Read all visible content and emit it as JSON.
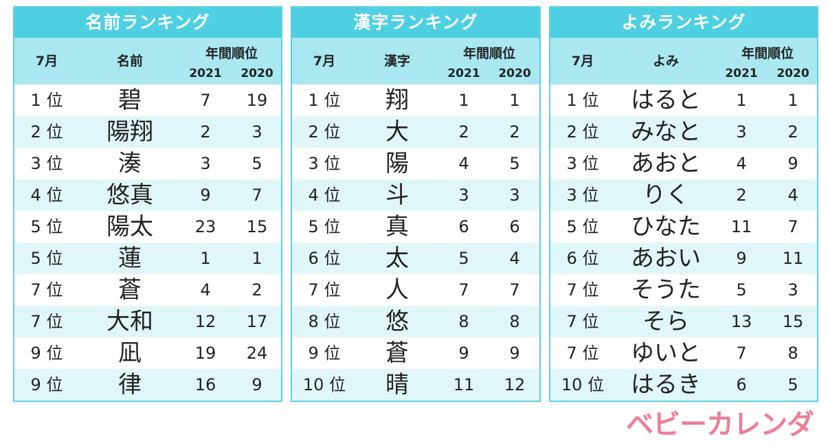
{
  "headers": {
    "month": "7月",
    "annual_rank": "年間順位",
    "year1": "2021",
    "year2": "2020"
  },
  "tables": [
    {
      "title": "名前ランキング",
      "name_header": "名前",
      "rows": [
        {
          "rank": "1 位",
          "name": "碧",
          "y2021": "7",
          "y2020": "19"
        },
        {
          "rank": "2 位",
          "name": "陽翔",
          "y2021": "2",
          "y2020": "3"
        },
        {
          "rank": "3 位",
          "name": "湊",
          "y2021": "3",
          "y2020": "5"
        },
        {
          "rank": "4 位",
          "name": "悠真",
          "y2021": "9",
          "y2020": "7"
        },
        {
          "rank": "5 位",
          "name": "陽太",
          "y2021": "23",
          "y2020": "15"
        },
        {
          "rank": "5 位",
          "name": "蓮",
          "y2021": "1",
          "y2020": "1"
        },
        {
          "rank": "7 位",
          "name": "蒼",
          "y2021": "4",
          "y2020": "2"
        },
        {
          "rank": "7 位",
          "name": "大和",
          "y2021": "12",
          "y2020": "17"
        },
        {
          "rank": "9 位",
          "name": "凪",
          "y2021": "19",
          "y2020": "24"
        },
        {
          "rank": "9 位",
          "name": "律",
          "y2021": "16",
          "y2020": "9"
        }
      ]
    },
    {
      "title": "漢字ランキング",
      "name_header": "漢字",
      "rows": [
        {
          "rank": "1 位",
          "name": "翔",
          "y2021": "1",
          "y2020": "1"
        },
        {
          "rank": "2 位",
          "name": "大",
          "y2021": "2",
          "y2020": "2"
        },
        {
          "rank": "3 位",
          "name": "陽",
          "y2021": "4",
          "y2020": "5"
        },
        {
          "rank": "4 位",
          "name": "斗",
          "y2021": "3",
          "y2020": "3"
        },
        {
          "rank": "5 位",
          "name": "真",
          "y2021": "6",
          "y2020": "6"
        },
        {
          "rank": "6 位",
          "name": "太",
          "y2021": "5",
          "y2020": "4"
        },
        {
          "rank": "7 位",
          "name": "人",
          "y2021": "7",
          "y2020": "7"
        },
        {
          "rank": "8 位",
          "name": "悠",
          "y2021": "8",
          "y2020": "8"
        },
        {
          "rank": "9 位",
          "name": "蒼",
          "y2021": "9",
          "y2020": "9"
        },
        {
          "rank": "10 位",
          "name": "晴",
          "y2021": "11",
          "y2020": "12"
        }
      ]
    },
    {
      "title": "よみランキング",
      "name_header": "よみ",
      "rows": [
        {
          "rank": "1 位",
          "name": "はると",
          "y2021": "1",
          "y2020": "1"
        },
        {
          "rank": "2 位",
          "name": "みなと",
          "y2021": "3",
          "y2020": "2"
        },
        {
          "rank": "3 位",
          "name": "あおと",
          "y2021": "4",
          "y2020": "9"
        },
        {
          "rank": "3 位",
          "name": "りく",
          "y2021": "2",
          "y2020": "4"
        },
        {
          "rank": "5 位",
          "name": "ひなた",
          "y2021": "11",
          "y2020": "7"
        },
        {
          "rank": "6 位",
          "name": "あおい",
          "y2021": "9",
          "y2020": "11"
        },
        {
          "rank": "7 位",
          "name": "そうた",
          "y2021": "5",
          "y2020": "3"
        },
        {
          "rank": "7 位",
          "name": "そら",
          "y2021": "13",
          "y2020": "15"
        },
        {
          "rank": "7 位",
          "name": "ゆいと",
          "y2021": "7",
          "y2020": "8"
        },
        {
          "rank": "10 位",
          "name": "はるき",
          "y2021": "6",
          "y2020": "5"
        }
      ]
    }
  ],
  "logo": "ベビーカレンダー",
  "colors": {
    "title_bar": "#4fcfe2",
    "header_bg": "#a9e8f1",
    "stripe": "#e1f6f9",
    "logo": "#ef7d95"
  }
}
